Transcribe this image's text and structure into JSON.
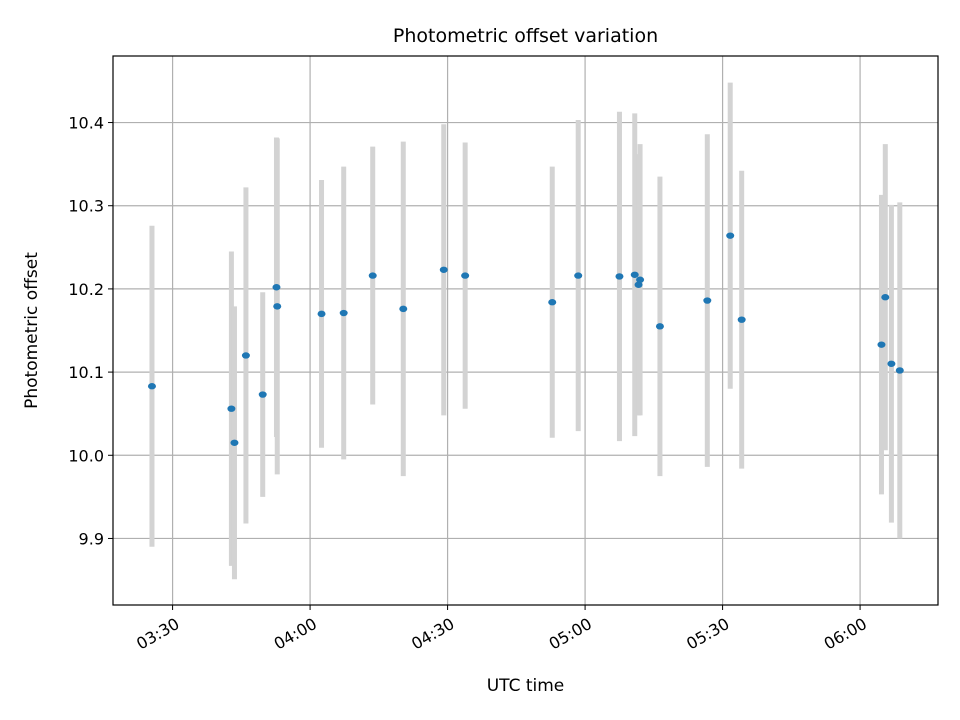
{
  "chart_data": {
    "type": "scatter",
    "title": "Photometric offset variation",
    "xlabel": "UTC time",
    "ylabel": "Photometric offset",
    "x_ticks": [
      "03:30",
      "04:00",
      "04:30",
      "05:00",
      "05:30",
      "06:00"
    ],
    "y_ticks": [
      "9.9",
      "10.0",
      "10.1",
      "10.2",
      "10.3",
      "10.4"
    ],
    "xlim": [
      "03:17",
      "06:17"
    ],
    "ylim": [
      9.82,
      10.48
    ],
    "grid": true,
    "colors": {
      "point": "#1f77b4",
      "errorbar": "#d3d3d3",
      "grid": "#b0b0b0"
    },
    "points": [
      {
        "x": "03:25:30",
        "y": 10.083,
        "err": 0.193
      },
      {
        "x": "03:42:50",
        "y": 10.056,
        "err": 0.189
      },
      {
        "x": "03:43:30",
        "y": 10.015,
        "err": 0.164
      },
      {
        "x": "03:46:00",
        "y": 10.12,
        "err": 0.202
      },
      {
        "x": "03:49:40",
        "y": 10.073,
        "err": 0.123
      },
      {
        "x": "03:52:40",
        "y": 10.202,
        "err": 0.18
      },
      {
        "x": "03:52:50",
        "y": 10.179,
        "err": 0.202
      },
      {
        "x": "04:02:30",
        "y": 10.17,
        "err": 0.161
      },
      {
        "x": "04:07:20",
        "y": 10.171,
        "err": 0.176
      },
      {
        "x": "04:13:40",
        "y": 10.216,
        "err": 0.155
      },
      {
        "x": "04:20:20",
        "y": 10.176,
        "err": 0.201
      },
      {
        "x": "04:29:10",
        "y": 10.223,
        "err": 0.175
      },
      {
        "x": "04:33:50",
        "y": 10.216,
        "err": 0.16
      },
      {
        "x": "04:52:50",
        "y": 10.184,
        "err": 0.163
      },
      {
        "x": "04:58:30",
        "y": 10.216,
        "err": 0.187
      },
      {
        "x": "05:07:30",
        "y": 10.215,
        "err": 0.198
      },
      {
        "x": "05:10:50",
        "y": 10.217,
        "err": 0.194
      },
      {
        "x": "05:11:40",
        "y": 10.205,
        "err": 0.157
      },
      {
        "x": "05:12:00",
        "y": 10.211,
        "err": 0.163
      },
      {
        "x": "05:16:20",
        "y": 10.155,
        "err": 0.18
      },
      {
        "x": "05:26:40",
        "y": 10.186,
        "err": 0.2
      },
      {
        "x": "05:31:40",
        "y": 10.264,
        "err": 0.184
      },
      {
        "x": "05:34:10",
        "y": 10.163,
        "err": 0.179
      },
      {
        "x": "06:04:40",
        "y": 10.133,
        "err": 0.18
      },
      {
        "x": "06:05:30",
        "y": 10.19,
        "err": 0.184
      },
      {
        "x": "06:06:50",
        "y": 10.11,
        "err": 0.191
      },
      {
        "x": "06:08:40",
        "y": 10.102,
        "err": 0.202
      }
    ]
  }
}
